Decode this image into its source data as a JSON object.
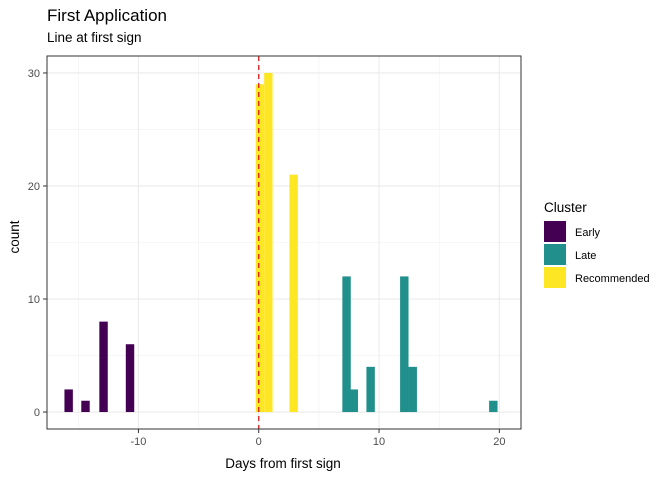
{
  "chart_data": {
    "type": "bar",
    "title": "First Application",
    "subtitle": "Line at first sign",
    "xlabel": "Days from first sign",
    "ylabel": "count",
    "xlim": [
      -17.6,
      21.8
    ],
    "ylim": [
      -1.5,
      31.5
    ],
    "xticks": [
      -10,
      0,
      10,
      20
    ],
    "xtick_labels": [
      "-10",
      "0",
      "10",
      "20"
    ],
    "yticks": [
      0,
      10,
      20,
      30
    ],
    "ytick_labels": [
      "0",
      "10",
      "20",
      "30"
    ],
    "bin_width": 0.7,
    "vline": {
      "x": 0,
      "color": "#e41a1c",
      "style": "dashed"
    },
    "grid": true,
    "legend": {
      "title": "Cluster",
      "position": "right"
    },
    "series": [
      {
        "name": "Early",
        "color": "#440154",
        "x": [
          -15.8,
          -14.4,
          -12.9,
          -10.7
        ],
        "values": [
          2,
          1,
          8,
          6
        ]
      },
      {
        "name": "Late",
        "color": "#21908C",
        "x": [
          7.3,
          7.9,
          9.3,
          12.1,
          12.8,
          19.5
        ],
        "values": [
          12,
          2,
          4,
          12,
          4,
          1
        ]
      },
      {
        "name": "Recommended",
        "color": "#FDE725",
        "x": [
          0.1,
          0.8,
          2.9
        ],
        "values": [
          29,
          30,
          21
        ]
      }
    ]
  }
}
